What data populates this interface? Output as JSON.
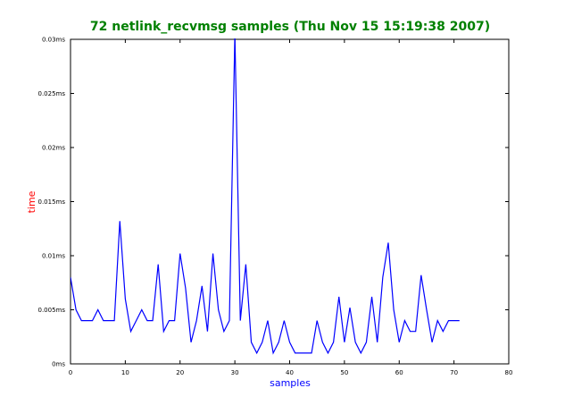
{
  "chart_data": {
    "type": "line",
    "title": "72 netlink_recvmsg samples (Thu Nov 15 15:19:38 2007)",
    "xlabel": "samples",
    "ylabel": "time",
    "xlim": [
      0,
      80
    ],
    "ylim": [
      0,
      0.03
    ],
    "xticks": [
      0,
      10,
      20,
      30,
      40,
      50,
      60,
      70,
      80
    ],
    "xtick_labels": [
      "0",
      "10",
      "20",
      "30",
      "40",
      "50",
      "60",
      "70",
      "80"
    ],
    "yticks": [
      0,
      0.005,
      0.01,
      0.015,
      0.02,
      0.025,
      0.03
    ],
    "ytick_labels": [
      "0ms",
      "0.005ms",
      "0.01ms",
      "0.015ms",
      "0.02ms",
      "0.025ms",
      "0.03ms"
    ],
    "grid": false,
    "series": [
      {
        "color": "#0000ff",
        "x": [
          0,
          1,
          2,
          3,
          4,
          5,
          6,
          7,
          8,
          9,
          10,
          11,
          12,
          13,
          14,
          15,
          16,
          17,
          18,
          19,
          20,
          21,
          22,
          23,
          24,
          25,
          26,
          27,
          28,
          29,
          30,
          31,
          32,
          33,
          34,
          35,
          36,
          37,
          38,
          39,
          40,
          41,
          42,
          43,
          44,
          45,
          46,
          47,
          48,
          49,
          50,
          51,
          52,
          53,
          54,
          55,
          56,
          57,
          58,
          59,
          60,
          61,
          62,
          63,
          64,
          65,
          66,
          67,
          68,
          69,
          70,
          71
        ],
        "y": [
          0.008,
          0.005,
          0.004,
          0.004,
          0.004,
          0.005,
          0.004,
          0.004,
          0.004,
          0.0132,
          0.006,
          0.003,
          0.004,
          0.005,
          0.004,
          0.004,
          0.0092,
          0.003,
          0.004,
          0.004,
          0.0102,
          0.007,
          0.002,
          0.004,
          0.0072,
          0.003,
          0.0102,
          0.005,
          0.003,
          0.004,
          0.0305,
          0.004,
          0.0092,
          0.002,
          0.001,
          0.002,
          0.004,
          0.001,
          0.002,
          0.004,
          0.002,
          0.001,
          0.001,
          0.001,
          0.001,
          0.004,
          0.002,
          0.001,
          0.002,
          0.0062,
          0.002,
          0.0052,
          0.002,
          0.001,
          0.002,
          0.0062,
          0.002,
          0.008,
          0.0112,
          0.005,
          0.002,
          0.004,
          0.003,
          0.003,
          0.0082,
          0.005,
          0.002,
          0.004,
          0.003,
          0.004,
          0.004,
          0.004
        ]
      }
    ]
  },
  "colors": {
    "title": "#008000",
    "xlabel": "#0000ff",
    "ylabel": "#ff0000",
    "line": "#0000ff",
    "axes": "#000000",
    "background": "#ffffff"
  }
}
